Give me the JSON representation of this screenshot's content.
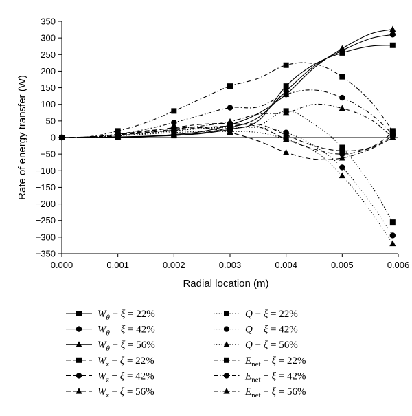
{
  "chart_data": {
    "type": "line",
    "title": "",
    "xlabel": "Radial location (m)",
    "ylabel": "Rate of energy transfer (W)",
    "xlim": [
      0,
      0.006
    ],
    "ylim": [
      -350,
      350
    ],
    "x_ticks": [
      "0.000",
      "0.001",
      "0.002",
      "0.003",
      "0.004",
      "0.005",
      "0.006"
    ],
    "y_ticks": [
      "350",
      "300",
      "250",
      "200",
      "150",
      "100",
      "50",
      "0",
      "−50",
      "−100",
      "−150",
      "−200",
      "−250",
      "−300",
      "−350"
    ],
    "grid": false,
    "legend_position": "bottom",
    "x": [
      0.0,
      0.0005,
      0.001,
      0.0015,
      0.002,
      0.0025,
      0.003,
      0.0035,
      0.004,
      0.0045,
      0.005,
      0.0055,
      0.0059
    ],
    "series": [
      {
        "name": "W_θ − ξ = 22%",
        "quantity": "W",
        "subscript": "θ",
        "xi": "22%",
        "marker": "square",
        "dash": "solid",
        "values": [
          0,
          0,
          1,
          3,
          6,
          12,
          25,
          50,
          155,
          220,
          255,
          275,
          278
        ]
      },
      {
        "name": "W_θ − ξ = 42%",
        "quantity": "W",
        "subscript": "θ",
        "xi": "42%",
        "marker": "circle",
        "dash": "solid",
        "values": [
          0,
          0,
          1,
          3,
          7,
          14,
          30,
          60,
          140,
          215,
          262,
          298,
          310
        ]
      },
      {
        "name": "W_θ − ξ = 56%",
        "quantity": "W",
        "subscript": "θ",
        "xi": "56%",
        "marker": "triangle",
        "dash": "solid",
        "values": [
          0,
          0,
          2,
          4,
          9,
          18,
          38,
          72,
          130,
          210,
          268,
          312,
          326
        ]
      },
      {
        "name": "W_z − ξ = 22%",
        "quantity": "W",
        "subscript": "z",
        "xi": "22%",
        "marker": "square",
        "dash": "longdash",
        "values": [
          0,
          2,
          8,
          15,
          22,
          30,
          35,
          40,
          8,
          -25,
          -40,
          -30,
          15
        ]
      },
      {
        "name": "W_z − ξ = 42%",
        "quantity": "W",
        "subscript": "z",
        "xi": "42%",
        "marker": "circle",
        "dash": "longdash",
        "values": [
          0,
          2,
          9,
          18,
          30,
          40,
          42,
          33,
          -5,
          -35,
          -50,
          -32,
          5
        ]
      },
      {
        "name": "W_z − ξ = 56%",
        "quantity": "W",
        "subscript": "z",
        "xi": "56%",
        "marker": "triangle",
        "dash": "longdash",
        "values": [
          0,
          2,
          10,
          20,
          28,
          30,
          15,
          -10,
          -45,
          -65,
          -62,
          -35,
          0
        ]
      },
      {
        "name": "Q − ξ = 22%",
        "quantity": "Q",
        "subscript": "",
        "xi": "22%",
        "marker": "square",
        "dash": "dotted",
        "values": [
          0,
          1,
          5,
          12,
          20,
          28,
          32,
          35,
          80,
          40,
          -30,
          -140,
          -255
        ]
      },
      {
        "name": "Q − ξ = 42%",
        "quantity": "Q",
        "subscript": "",
        "xi": "42%",
        "marker": "circle",
        "dash": "dotted",
        "values": [
          0,
          1,
          5,
          12,
          20,
          27,
          30,
          30,
          15,
          -25,
          -90,
          -195,
          -295
        ]
      },
      {
        "name": "Q − ξ = 56%",
        "quantity": "Q",
        "subscript": "",
        "xi": "56%",
        "marker": "triangle",
        "dash": "dotted",
        "values": [
          0,
          1,
          5,
          10,
          15,
          18,
          18,
          15,
          -5,
          -40,
          -115,
          -220,
          -320
        ]
      },
      {
        "name": "E_net − ξ = 22%",
        "quantity": "E",
        "subscript": "net",
        "xi": "22%",
        "marker": "square",
        "dash": "dashdot",
        "values": [
          0,
          3,
          20,
          45,
          80,
          118,
          155,
          178,
          218,
          222,
          183,
          110,
          20
        ]
      },
      {
        "name": "E_net − ξ = 42%",
        "quantity": "E",
        "subscript": "net",
        "xi": "42%",
        "marker": "circle",
        "dash": "dashdot",
        "values": [
          0,
          2,
          10,
          25,
          45,
          68,
          90,
          92,
          130,
          143,
          120,
          72,
          10
        ]
      },
      {
        "name": "E_net − ξ = 56%",
        "quantity": "E",
        "subscript": "net",
        "xi": "56%",
        "marker": "triangle",
        "dash": "dashdot",
        "values": [
          0,
          1,
          5,
          15,
          25,
          35,
          48,
          70,
          75,
          100,
          88,
          55,
          0
        ]
      }
    ]
  }
}
